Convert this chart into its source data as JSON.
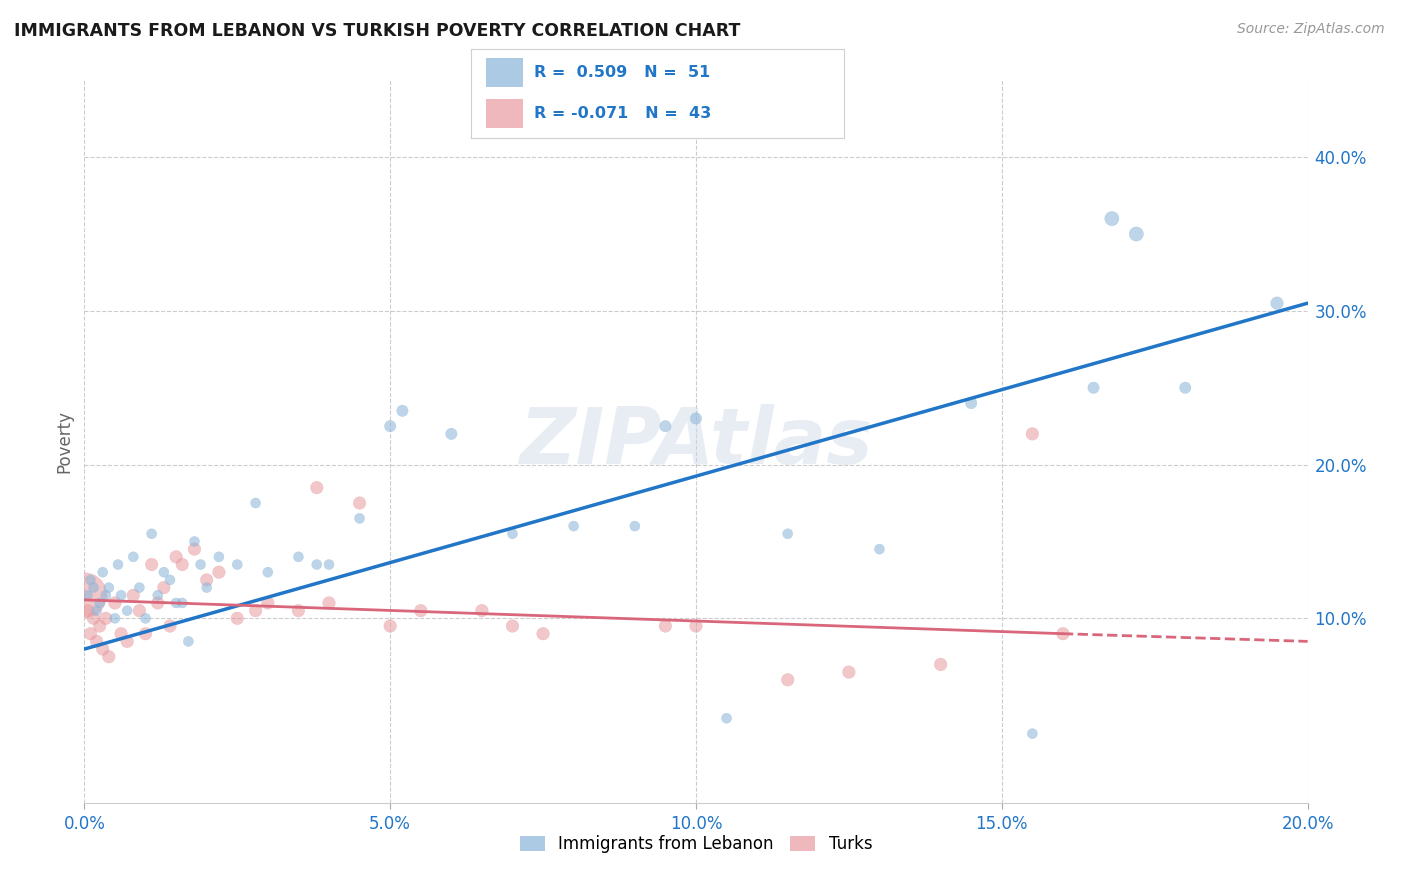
{
  "title": "IMMIGRANTS FROM LEBANON VS TURKISH POVERTY CORRELATION CHART",
  "source": "Source: ZipAtlas.com",
  "xlabel_vals": [
    0.0,
    5.0,
    10.0,
    15.0,
    20.0
  ],
  "ylabel": "Poverty",
  "ylabel_vals": [
    10.0,
    20.0,
    30.0,
    40.0
  ],
  "xlim": [
    0.0,
    20.0
  ],
  "ylim": [
    -2.0,
    45.0
  ],
  "legend_label1": "Immigrants from Lebanon",
  "legend_label2": "Turks",
  "blue_color": "#89b4d8",
  "pink_color": "#e89aa0",
  "blue_line_color": "#2176c7",
  "pink_line_solid_color": "#d9667a",
  "pink_line_dash_color": "#d9667a",
  "watermark": "ZIPAtlas",
  "blue_R": 0.509,
  "blue_N": 51,
  "pink_R": -0.071,
  "pink_N": 43,
  "blue_dots": [
    [
      0.05,
      11.5
    ],
    [
      0.1,
      12.5
    ],
    [
      0.15,
      12.0
    ],
    [
      0.2,
      10.5
    ],
    [
      0.25,
      11.0
    ],
    [
      0.3,
      13.0
    ],
    [
      0.35,
      11.5
    ],
    [
      0.4,
      12.0
    ],
    [
      0.5,
      10.0
    ],
    [
      0.55,
      13.5
    ],
    [
      0.6,
      11.5
    ],
    [
      0.7,
      10.5
    ],
    [
      0.8,
      14.0
    ],
    [
      0.9,
      12.0
    ],
    [
      1.0,
      10.0
    ],
    [
      1.1,
      15.5
    ],
    [
      1.2,
      11.5
    ],
    [
      1.3,
      13.0
    ],
    [
      1.4,
      12.5
    ],
    [
      1.5,
      11.0
    ],
    [
      1.6,
      11.0
    ],
    [
      1.7,
      8.5
    ],
    [
      1.8,
      15.0
    ],
    [
      1.9,
      13.5
    ],
    [
      2.0,
      12.0
    ],
    [
      2.2,
      14.0
    ],
    [
      2.5,
      13.5
    ],
    [
      2.8,
      17.5
    ],
    [
      3.0,
      13.0
    ],
    [
      3.5,
      14.0
    ],
    [
      3.8,
      13.5
    ],
    [
      4.0,
      13.5
    ],
    [
      4.5,
      16.5
    ],
    [
      5.0,
      22.5
    ],
    [
      5.2,
      23.5
    ],
    [
      6.0,
      22.0
    ],
    [
      7.0,
      15.5
    ],
    [
      8.0,
      16.0
    ],
    [
      9.0,
      16.0
    ],
    [
      9.5,
      22.5
    ],
    [
      10.5,
      3.5
    ],
    [
      11.5,
      15.5
    ],
    [
      13.0,
      14.5
    ],
    [
      14.5,
      24.0
    ],
    [
      16.5,
      25.0
    ],
    [
      16.8,
      36.0
    ],
    [
      17.2,
      35.0
    ],
    [
      18.0,
      25.0
    ],
    [
      19.5,
      30.5
    ],
    [
      15.5,
      2.5
    ],
    [
      10.0,
      23.0
    ]
  ],
  "blue_dot_sizes": [
    35,
    35,
    35,
    35,
    35,
    35,
    35,
    35,
    35,
    35,
    35,
    35,
    35,
    35,
    35,
    35,
    35,
    35,
    35,
    35,
    35,
    35,
    35,
    35,
    35,
    35,
    35,
    35,
    35,
    35,
    35,
    35,
    35,
    45,
    45,
    45,
    35,
    35,
    35,
    45,
    35,
    35,
    35,
    45,
    45,
    70,
    70,
    45,
    55,
    35,
    45
  ],
  "pink_dots": [
    [
      0.0,
      11.5
    ],
    [
      0.05,
      10.5
    ],
    [
      0.1,
      9.0
    ],
    [
      0.15,
      10.0
    ],
    [
      0.2,
      8.5
    ],
    [
      0.25,
      9.5
    ],
    [
      0.3,
      8.0
    ],
    [
      0.35,
      10.0
    ],
    [
      0.4,
      7.5
    ],
    [
      0.5,
      11.0
    ],
    [
      0.6,
      9.0
    ],
    [
      0.7,
      8.5
    ],
    [
      0.8,
      11.5
    ],
    [
      0.9,
      10.5
    ],
    [
      1.0,
      9.0
    ],
    [
      1.1,
      13.5
    ],
    [
      1.2,
      11.0
    ],
    [
      1.3,
      12.0
    ],
    [
      1.4,
      9.5
    ],
    [
      1.5,
      14.0
    ],
    [
      1.6,
      13.5
    ],
    [
      1.8,
      14.5
    ],
    [
      2.0,
      12.5
    ],
    [
      2.2,
      13.0
    ],
    [
      2.5,
      10.0
    ],
    [
      2.8,
      10.5
    ],
    [
      3.0,
      11.0
    ],
    [
      3.5,
      10.5
    ],
    [
      3.8,
      18.5
    ],
    [
      4.0,
      11.0
    ],
    [
      4.5,
      17.5
    ],
    [
      5.0,
      9.5
    ],
    [
      5.5,
      10.5
    ],
    [
      6.5,
      10.5
    ],
    [
      7.0,
      9.5
    ],
    [
      7.5,
      9.0
    ],
    [
      9.5,
      9.5
    ],
    [
      10.0,
      9.5
    ],
    [
      11.5,
      6.0
    ],
    [
      12.5,
      6.5
    ],
    [
      14.0,
      7.0
    ],
    [
      15.5,
      22.0
    ],
    [
      16.0,
      9.0
    ]
  ],
  "pink_dot_sizes": [
    700,
    55,
    55,
    55,
    55,
    55,
    55,
    55,
    55,
    55,
    55,
    55,
    55,
    55,
    55,
    55,
    55,
    55,
    55,
    55,
    55,
    55,
    55,
    55,
    55,
    55,
    55,
    55,
    55,
    55,
    55,
    55,
    55,
    55,
    55,
    55,
    55,
    55,
    55,
    55,
    55,
    55,
    55
  ],
  "blue_line_x0": 0.0,
  "blue_line_y0": 8.0,
  "blue_line_x1": 20.0,
  "blue_line_y1": 30.5,
  "pink_solid_x0": 0.0,
  "pink_solid_y0": 11.2,
  "pink_solid_x1": 16.0,
  "pink_solid_y1": 9.0,
  "pink_dash_x0": 16.0,
  "pink_dash_y0": 9.0,
  "pink_dash_x1": 20.0,
  "pink_dash_y1": 8.5,
  "grid_color": "#cccccc",
  "background_color": "#ffffff",
  "tick_color": "#2176c7"
}
